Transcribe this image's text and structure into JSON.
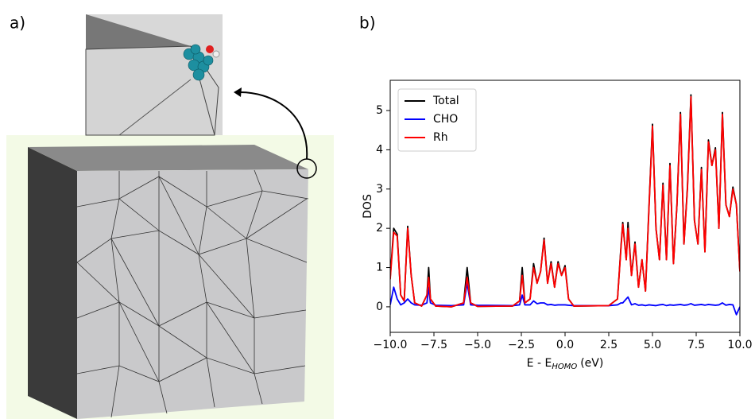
{
  "panel_labels": {
    "a": "a)",
    "b": "b)"
  },
  "chart_data": {
    "type": "line",
    "xlabel": {
      "main": "E - E",
      "sub": "HOMO",
      "unit": "(eV)"
    },
    "ylabel": "DOS",
    "xlim": [
      -10,
      10
    ],
    "ylim": [
      -0.65,
      5.77
    ],
    "xticks": [
      {
        "value": -10,
        "label": "−10.0"
      },
      {
        "value": -7.5,
        "label": "−7.5"
      },
      {
        "value": -5,
        "label": "−5.0"
      },
      {
        "value": -2.5,
        "label": "−2.5"
      },
      {
        "value": 0,
        "label": "0.0"
      },
      {
        "value": 2.5,
        "label": "2.5"
      },
      {
        "value": 5,
        "label": "5.0"
      },
      {
        "value": 7.5,
        "label": "7.5"
      },
      {
        "value": 10,
        "label": "10.0"
      }
    ],
    "yticks": [
      0,
      1,
      2,
      3,
      4,
      5
    ],
    "grid": false,
    "legend": "upper left",
    "x": [
      -10,
      -9.8,
      -9.6,
      -9.4,
      -9.2,
      -9,
      -8.8,
      -8.6,
      -8.2,
      -7.9,
      -7.8,
      -7.7,
      -7.4,
      -6.5,
      -5.8,
      -5.6,
      -5.4,
      -5,
      -3,
      -2.6,
      -2.45,
      -2.3,
      -2,
      -1.8,
      -1.6,
      -1.4,
      -1.2,
      -1,
      -0.8,
      -0.6,
      -0.4,
      -0.2,
      0,
      0.2,
      0.5,
      2.5,
      3,
      3.2,
      3.3,
      3.5,
      3.6,
      3.8,
      4,
      4.2,
      4.4,
      4.6,
      4.8,
      5,
      5.2,
      5.4,
      5.6,
      5.8,
      6,
      6.2,
      6.4,
      6.6,
      6.8,
      7,
      7.2,
      7.4,
      7.6,
      7.8,
      8,
      8.2,
      8.4,
      8.6,
      8.8,
      9,
      9.2,
      9.4,
      9.6,
      9.8,
      10
    ],
    "series": [
      {
        "name": "Total",
        "color": "#000000",
        "values": [
          0.75,
          2.0,
          1.85,
          0.3,
          0.15,
          2.05,
          0.8,
          0.1,
          0.02,
          0.3,
          1.0,
          0.2,
          0.02,
          0.0,
          0.1,
          1.0,
          0.1,
          0.01,
          0.02,
          0.15,
          1.0,
          0.1,
          0.2,
          1.1,
          0.6,
          0.9,
          1.75,
          0.6,
          1.15,
          0.5,
          1.15,
          0.8,
          1.05,
          0.2,
          0.02,
          0.03,
          0.2,
          1.55,
          2.15,
          1.2,
          2.15,
          0.8,
          1.65,
          0.5,
          1.2,
          0.4,
          2.55,
          4.65,
          2.0,
          1.2,
          3.15,
          1.2,
          3.65,
          1.1,
          2.6,
          4.95,
          1.6,
          3.05,
          5.4,
          2.2,
          1.6,
          3.55,
          1.4,
          4.25,
          3.6,
          4.05,
          2.0,
          4.95,
          2.6,
          2.3,
          3.05,
          2.6,
          0.9
        ]
      },
      {
        "name": "CHO",
        "color": "#0000ff",
        "values": [
          0.05,
          0.5,
          0.2,
          0.05,
          0.1,
          0.2,
          0.1,
          0.05,
          0.04,
          0.1,
          0.5,
          0.1,
          0.04,
          0.03,
          0.05,
          0.6,
          0.05,
          0.04,
          0.03,
          0.05,
          0.3,
          0.05,
          0.05,
          0.15,
          0.08,
          0.1,
          0.1,
          0.05,
          0.06,
          0.04,
          0.05,
          0.05,
          0.05,
          0.04,
          0.03,
          0.03,
          0.05,
          0.1,
          0.1,
          0.2,
          0.25,
          0.05,
          0.08,
          0.04,
          0.05,
          0.03,
          0.05,
          0.04,
          0.03,
          0.05,
          0.06,
          0.03,
          0.05,
          0.04,
          0.05,
          0.06,
          0.04,
          0.05,
          0.08,
          0.04,
          0.05,
          0.06,
          0.04,
          0.06,
          0.05,
          0.04,
          0.05,
          0.1,
          0.04,
          0.06,
          0.05,
          -0.2,
          0.0
        ]
      },
      {
        "name": "Rh",
        "color": "#ff0000",
        "values": [
          0.7,
          1.9,
          1.8,
          0.3,
          0.15,
          2.0,
          0.8,
          0.1,
          0.02,
          0.3,
          0.75,
          0.2,
          0.02,
          0.0,
          0.1,
          0.75,
          0.1,
          0.01,
          0.02,
          0.15,
          0.8,
          0.1,
          0.2,
          1.0,
          0.6,
          0.9,
          1.7,
          0.6,
          1.1,
          0.5,
          1.1,
          0.8,
          1.0,
          0.2,
          0.02,
          0.03,
          0.2,
          1.5,
          2.1,
          1.2,
          2.0,
          0.8,
          1.6,
          0.5,
          1.2,
          0.4,
          2.5,
          4.6,
          2.0,
          1.2,
          3.1,
          1.2,
          3.6,
          1.1,
          2.6,
          4.9,
          1.6,
          3.0,
          5.35,
          2.2,
          1.6,
          3.5,
          1.4,
          4.2,
          3.6,
          4.0,
          2.0,
          4.9,
          2.6,
          2.3,
          3.0,
          2.6,
          0.9
        ]
      }
    ]
  }
}
